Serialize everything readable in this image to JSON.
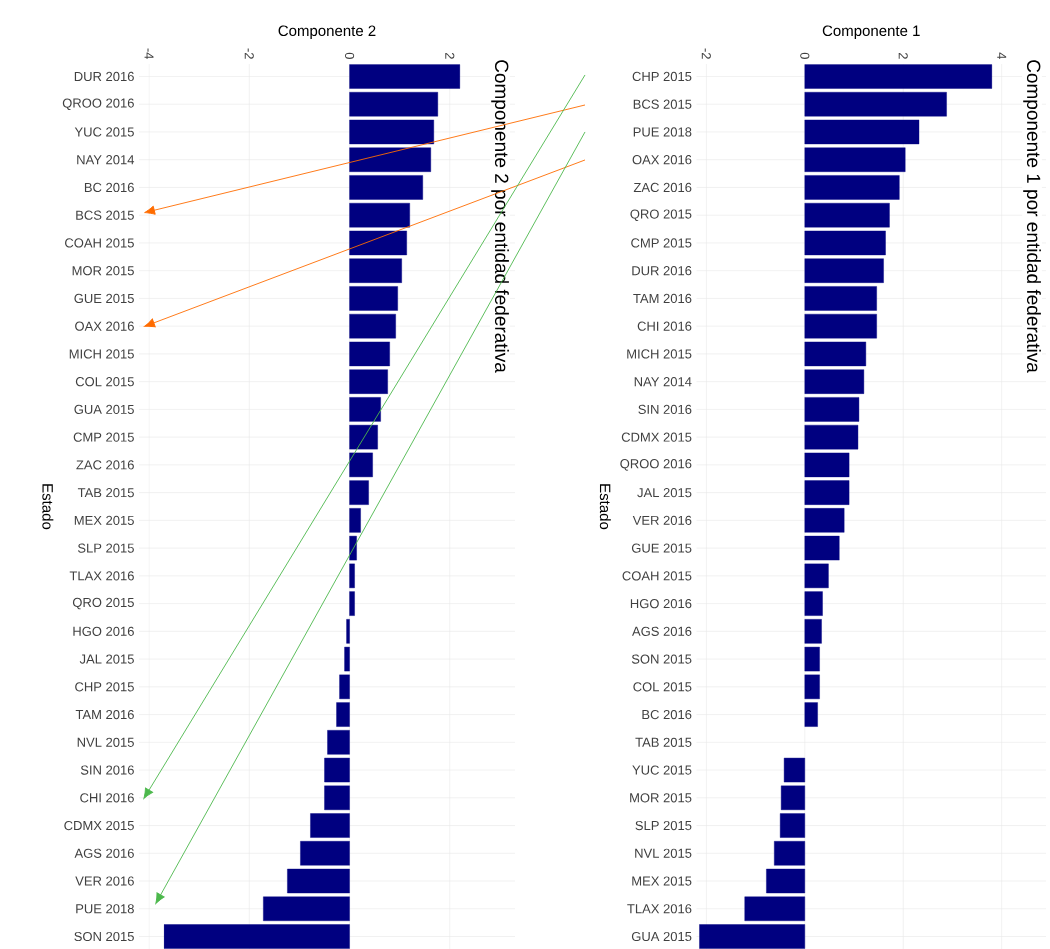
{
  "chart_data": [
    {
      "type": "bar",
      "orientation": "horizontal",
      "title": "Componente 2 por entidad federativa",
      "xlabel": "Componente 2",
      "ylabel": "Estado",
      "color": "#000080",
      "grid": true,
      "categories": [
        "DUR 2016",
        "QROO 2016",
        "YUC 2015",
        "NAY 2014",
        "BC 2016",
        "BCS 2015",
        "COAH 2015",
        "MOR 2015",
        "GUE 2015",
        "OAX 2016",
        "MICH 2015",
        "COL 2015",
        "GUA 2015",
        "CMP 2015",
        "ZAC 2016",
        "TAB 2015",
        "MEX 2015",
        "SLP 2015",
        "TLAX 2016",
        "QRO 2015",
        "HGO 2016",
        "JAL 2015",
        "CHP 2015",
        "TAM 2016",
        "NVL 2015",
        "SIN 2016",
        "CHI 2016",
        "CDMX 2015",
        "AGS 2016",
        "VER 2016",
        "PUE 2018",
        "SON 2015"
      ],
      "values": [
        2.2,
        1.76,
        1.68,
        1.62,
        1.46,
        1.2,
        1.14,
        1.04,
        0.96,
        0.92,
        0.8,
        0.76,
        0.62,
        0.56,
        0.46,
        0.38,
        0.22,
        0.14,
        0.1,
        0.1,
        -0.06,
        -0.1,
        -0.2,
        -0.26,
        -0.44,
        -0.5,
        -0.5,
        -0.78,
        -0.98,
        -1.24,
        -1.72,
        -3.7
      ],
      "xlim": [
        -4.2,
        3.3
      ],
      "xticks": [
        -4,
        -2,
        0,
        2
      ]
    },
    {
      "type": "bar",
      "orientation": "horizontal",
      "title": "Componente 1 por entidad federativa",
      "xlabel": "Componente 1",
      "ylabel": "Estado",
      "color": "#000080",
      "grid": true,
      "categories": [
        "CHP 2015",
        "BCS 2015",
        "PUE 2018",
        "OAX 2016",
        "ZAC 2016",
        "QRO 2015",
        "CMP 2015",
        "DUR 2016",
        "TAM 2016",
        "CHI 2016",
        "MICH 2015",
        "NAY 2014",
        "SIN 2016",
        "CDMX 2015",
        "QROO 2016",
        "JAL 2015",
        "VER 2016",
        "GUE 2015",
        "COAH 2015",
        "HGO 2016",
        "AGS 2016",
        "SON 2015",
        "COL 2015",
        "BC 2016",
        "TAB 2015",
        "YUC 2015",
        "MOR 2015",
        "SLP 2015",
        "NVL 2015",
        "MEX 2015",
        "TLAX 2016",
        "GUA 2015"
      ],
      "values": [
        3.8,
        2.88,
        2.32,
        2.04,
        1.92,
        1.72,
        1.64,
        1.6,
        1.46,
        1.46,
        1.24,
        1.2,
        1.1,
        1.08,
        0.9,
        0.9,
        0.8,
        0.7,
        0.48,
        0.36,
        0.34,
        0.3,
        0.3,
        0.26,
        null,
        -0.42,
        -0.48,
        -0.5,
        -0.62,
        -0.78,
        -1.22,
        -2.14
      ],
      "xlim": [
        -2.2,
        4.9
      ],
      "xticks": [
        -2,
        0,
        2,
        4
      ]
    }
  ]
}
